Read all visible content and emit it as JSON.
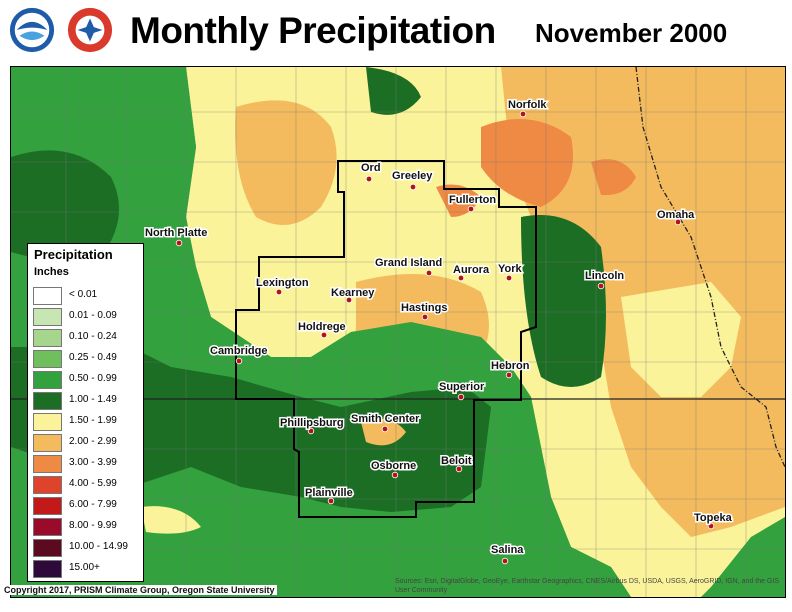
{
  "header": {
    "title": "Monthly Precipitation",
    "date": "November 2000"
  },
  "legend": {
    "title": "Precipitation",
    "units": "Inches",
    "items": [
      {
        "label": "< 0.01",
        "color": "#ffffff"
      },
      {
        "label": "0.01 - 0.09",
        "color": "#c8e6b4"
      },
      {
        "label": "0.10 - 0.24",
        "color": "#a6d58e"
      },
      {
        "label": "0.25 - 0.49",
        "color": "#6fbf5c"
      },
      {
        "label": "0.50 - 0.99",
        "color": "#33a13e"
      },
      {
        "label": "1.00 - 1.49",
        "color": "#1c6e25"
      },
      {
        "label": "1.50 - 1.99",
        "color": "#fbf39a"
      },
      {
        "label": "2.00 - 2.99",
        "color": "#f3bb5e"
      },
      {
        "label": "3.00 - 3.99",
        "color": "#ef8a44"
      },
      {
        "label": "4.00 - 5.99",
        "color": "#e0432b"
      },
      {
        "label": "6.00 - 7.99",
        "color": "#c21a1a"
      },
      {
        "label": "8.00 - 9.99",
        "color": "#9a0b2b"
      },
      {
        "label": "10.00 - 14.99",
        "color": "#5c0a20"
      },
      {
        "label": "15.00+",
        "color": "#2d0a3a"
      }
    ]
  },
  "cities": [
    {
      "name": "Norfolk"
    },
    {
      "name": "Ord"
    },
    {
      "name": "Greeley"
    },
    {
      "name": "Fullerton"
    },
    {
      "name": "North Platte"
    },
    {
      "name": "Omaha"
    },
    {
      "name": "Grand Island"
    },
    {
      "name": "Aurora"
    },
    {
      "name": "York"
    },
    {
      "name": "Lincoln"
    },
    {
      "name": "Lexington"
    },
    {
      "name": "Kearney"
    },
    {
      "name": "Hastings"
    },
    {
      "name": "Holdrege"
    },
    {
      "name": "Cambridge"
    },
    {
      "name": "Hebron"
    },
    {
      "name": "Superior"
    },
    {
      "name": "Phillipsburg"
    },
    {
      "name": "Smith Center"
    },
    {
      "name": "Beloit"
    },
    {
      "name": "Osborne"
    },
    {
      "name": "Plainville"
    },
    {
      "name": "Topeka"
    },
    {
      "name": "Salina"
    }
  ],
  "footer": {
    "copyright": "Copyright 2017, PRISM Climate Group, Oregon State University",
    "credits": "Sources: Esri, DigitalGlobe, GeoEye, Earthstar Geographics, CNES/Airbus DS, USDA, USGS, AeroGRID, IGN, and the GIS User Community"
  }
}
